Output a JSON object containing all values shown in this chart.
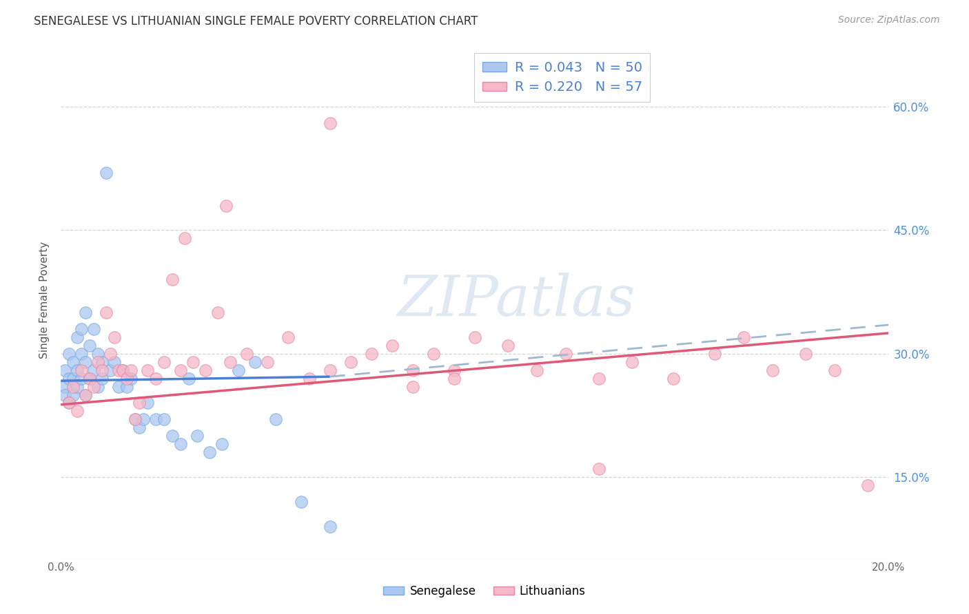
{
  "title": "SENEGALESE VS LITHUANIAN SINGLE FEMALE POVERTY CORRELATION CHART",
  "source": "Source: ZipAtlas.com",
  "ylabel": "Single Female Poverty",
  "xlim": [
    0.0,
    0.2
  ],
  "ylim": [
    0.05,
    0.68
  ],
  "yticks": [
    0.15,
    0.3,
    0.45,
    0.6
  ],
  "ytick_labels": [
    "15.0%",
    "30.0%",
    "45.0%",
    "60.0%"
  ],
  "background_color": "#ffffff",
  "senegalese_color": "#aac8f0",
  "senegalese_edge": "#7aaae0",
  "lithuanian_color": "#f5b8c8",
  "lithuanian_edge": "#e888a8",
  "trend_blue": "#4a7fd4",
  "trend_pink": "#e05878",
  "trend_dash": "#a0b8d0",
  "R_senegalese": 0.043,
  "N_senegalese": 50,
  "R_lithuanian": 0.22,
  "N_lithuanian": 57,
  "sen_x": [
    0.001,
    0.001,
    0.001,
    0.002,
    0.002,
    0.002,
    0.003,
    0.003,
    0.003,
    0.004,
    0.004,
    0.004,
    0.005,
    0.005,
    0.005,
    0.006,
    0.006,
    0.006,
    0.007,
    0.007,
    0.008,
    0.008,
    0.009,
    0.009,
    0.01,
    0.01,
    0.011,
    0.012,
    0.013,
    0.014,
    0.015,
    0.016,
    0.017,
    0.018,
    0.019,
    0.02,
    0.021,
    0.023,
    0.025,
    0.027,
    0.029,
    0.031,
    0.033,
    0.036,
    0.039,
    0.043,
    0.047,
    0.052,
    0.058,
    0.065
  ],
  "sen_y": [
    0.26,
    0.28,
    0.25,
    0.27,
    0.3,
    0.24,
    0.29,
    0.27,
    0.25,
    0.32,
    0.28,
    0.26,
    0.33,
    0.27,
    0.3,
    0.35,
    0.29,
    0.25,
    0.31,
    0.27,
    0.33,
    0.28,
    0.3,
    0.26,
    0.29,
    0.27,
    0.52,
    0.28,
    0.29,
    0.26,
    0.28,
    0.26,
    0.27,
    0.22,
    0.21,
    0.22,
    0.24,
    0.22,
    0.22,
    0.2,
    0.19,
    0.27,
    0.2,
    0.18,
    0.19,
    0.28,
    0.29,
    0.22,
    0.12,
    0.09
  ],
  "lit_x": [
    0.002,
    0.003,
    0.004,
    0.005,
    0.006,
    0.007,
    0.008,
    0.009,
    0.01,
    0.011,
    0.012,
    0.013,
    0.014,
    0.015,
    0.016,
    0.017,
    0.018,
    0.019,
    0.021,
    0.023,
    0.025,
    0.027,
    0.029,
    0.032,
    0.035,
    0.038,
    0.041,
    0.045,
    0.05,
    0.055,
    0.06,
    0.065,
    0.07,
    0.075,
    0.08,
    0.085,
    0.09,
    0.095,
    0.1,
    0.108,
    0.115,
    0.122,
    0.13,
    0.138,
    0.148,
    0.158,
    0.165,
    0.172,
    0.18,
    0.187,
    0.065,
    0.04,
    0.03,
    0.085,
    0.095,
    0.13,
    0.195
  ],
  "lit_y": [
    0.24,
    0.26,
    0.23,
    0.28,
    0.25,
    0.27,
    0.26,
    0.29,
    0.28,
    0.35,
    0.3,
    0.32,
    0.28,
    0.28,
    0.27,
    0.28,
    0.22,
    0.24,
    0.28,
    0.27,
    0.29,
    0.39,
    0.28,
    0.29,
    0.28,
    0.35,
    0.29,
    0.3,
    0.29,
    0.32,
    0.27,
    0.28,
    0.29,
    0.3,
    0.31,
    0.28,
    0.3,
    0.28,
    0.32,
    0.31,
    0.28,
    0.3,
    0.27,
    0.29,
    0.27,
    0.3,
    0.32,
    0.28,
    0.3,
    0.28,
    0.58,
    0.48,
    0.44,
    0.26,
    0.27,
    0.16,
    0.14
  ],
  "sen_trend_x": [
    0.0,
    0.065
  ],
  "sen_trend_y": [
    0.267,
    0.272
  ],
  "lit_trend_x": [
    0.0,
    0.2
  ],
  "lit_trend_y": [
    0.238,
    0.325
  ],
  "dash_trend_x": [
    0.065,
    0.2
  ],
  "dash_trend_y": [
    0.272,
    0.335
  ]
}
